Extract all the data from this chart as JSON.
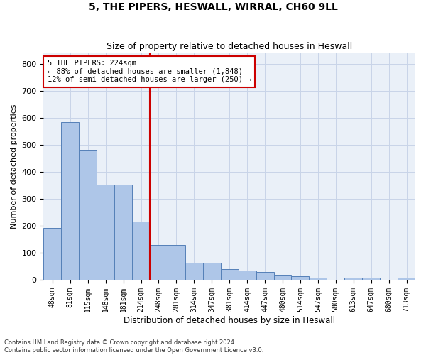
{
  "title_line1": "5, THE PIPERS, HESWALL, WIRRAL, CH60 9LL",
  "title_line2": "Size of property relative to detached houses in Heswall",
  "xlabel": "Distribution of detached houses by size in Heswall",
  "ylabel": "Number of detached properties",
  "footnote1": "Contains HM Land Registry data © Crown copyright and database right 2024.",
  "footnote2": "Contains public sector information licensed under the Open Government Licence v3.0.",
  "bin_labels": [
    "48sqm",
    "81sqm",
    "115sqm",
    "148sqm",
    "181sqm",
    "214sqm",
    "248sqm",
    "281sqm",
    "314sqm",
    "347sqm",
    "381sqm",
    "414sqm",
    "447sqm",
    "480sqm",
    "514sqm",
    "547sqm",
    "580sqm",
    "613sqm",
    "647sqm",
    "680sqm",
    "713sqm"
  ],
  "bar_values": [
    193,
    585,
    480,
    353,
    353,
    215,
    130,
    130,
    62,
    62,
    40,
    35,
    30,
    15,
    12,
    8,
    0,
    8,
    8,
    0,
    8
  ],
  "bar_color": "#aec6e8",
  "bar_edge_color": "#5580b8",
  "grid_color": "#c8d4e8",
  "background_color": "#eaf0f8",
  "vline_index": 5,
  "vline_color": "#cc0000",
  "annotation_text": "5 THE PIPERS: 224sqm\n← 88% of detached houses are smaller (1,848)\n12% of semi-detached houses are larger (250) →",
  "annotation_box_color": "#cc0000",
  "ylim": [
    0,
    840
  ],
  "yticks": [
    0,
    100,
    200,
    300,
    400,
    500,
    600,
    700,
    800
  ]
}
